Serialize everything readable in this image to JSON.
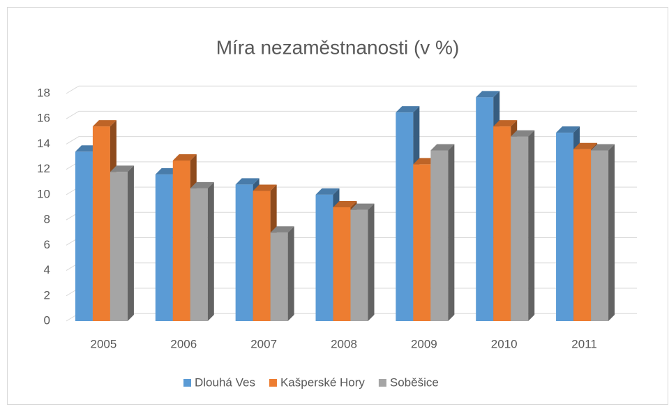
{
  "chart_data": {
    "type": "bar3d",
    "title": "Míra nezaměstnanosti (v %)",
    "categories": [
      "2005",
      "2006",
      "2007",
      "2008",
      "2009",
      "2010",
      "2011"
    ],
    "series": [
      {
        "name": "Dlouhá Ves",
        "color": "#5b9bd5",
        "values": [
          13.4,
          11.6,
          10.8,
          10.0,
          16.5,
          17.7,
          14.9
        ]
      },
      {
        "name": "Kašperské Hory",
        "color": "#ed7d31",
        "values": [
          15.4,
          12.7,
          10.3,
          9.0,
          12.4,
          15.4,
          13.6
        ]
      },
      {
        "name": "Soběšice",
        "color": "#a5a5a5",
        "values": [
          11.8,
          10.5,
          7.0,
          8.8,
          13.5,
          14.6,
          13.5
        ]
      }
    ],
    "ylim": [
      0,
      18
    ],
    "yticks": [
      0,
      2,
      4,
      6,
      8,
      10,
      12,
      14,
      16,
      18
    ],
    "grid": true,
    "legend": "bottom"
  }
}
